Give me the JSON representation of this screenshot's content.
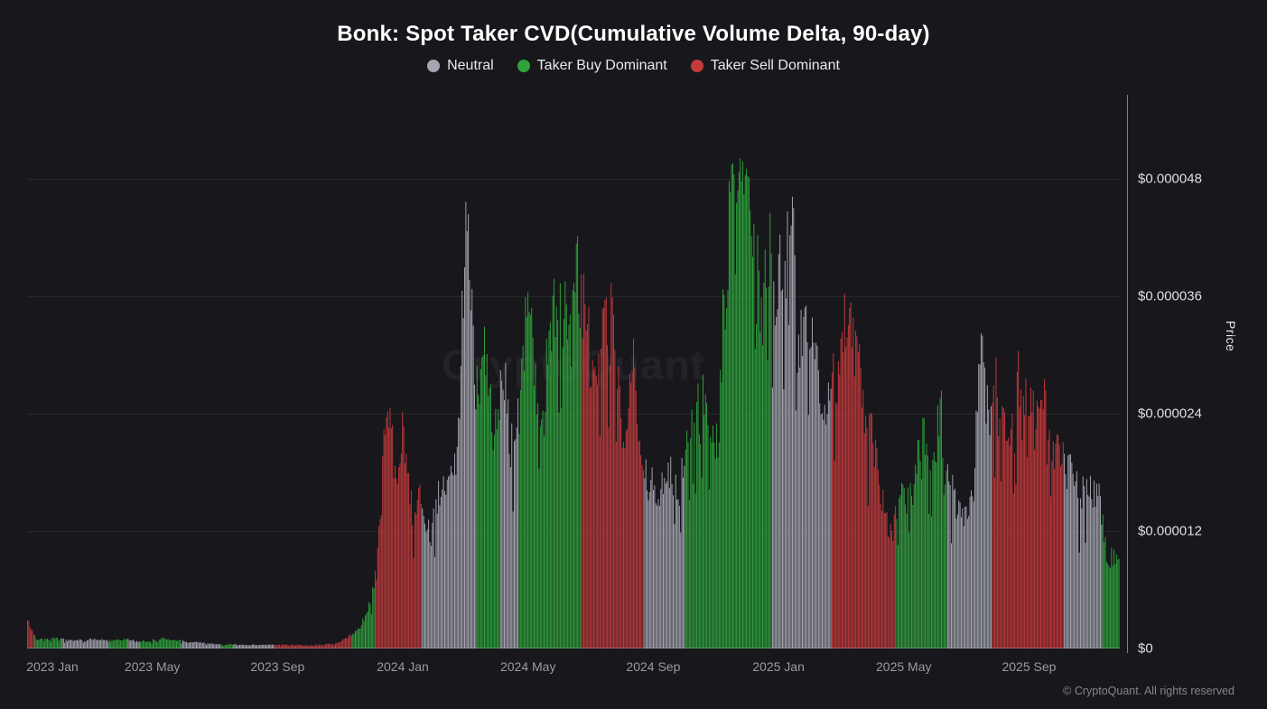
{
  "title": "Bonk: Spot Taker CVD(Cumulative Volume Delta, 90-day)",
  "watermark": "CryptoQuant",
  "footer": "© CryptoQuant. All rights reserved",
  "legend": [
    {
      "label": "Neutral",
      "color_key": "neutral"
    },
    {
      "label": "Taker Buy Dominant",
      "color_key": "buy"
    },
    {
      "label": "Taker Sell Dominant",
      "color_key": "sell"
    }
  ],
  "y_axis": {
    "label": "Price",
    "ticks": [
      {
        "value": 48,
        "label": "$0.000048"
      },
      {
        "value": 36,
        "label": "$0.000036"
      },
      {
        "value": 24,
        "label": "$0.000024"
      },
      {
        "value": 12,
        "label": "$0.000012"
      },
      {
        "value": 0,
        "label": "$0"
      }
    ]
  },
  "x_axis": {
    "ticks": [
      {
        "m": 0,
        "label": "2023 Jan"
      },
      {
        "m": 4,
        "label": "2023 May"
      },
      {
        "m": 8,
        "label": "2023 Sep"
      },
      {
        "m": 12,
        "label": "2024 Jan"
      },
      {
        "m": 16,
        "label": "2024 May"
      },
      {
        "m": 20,
        "label": "2024 Sep"
      },
      {
        "m": 24,
        "label": "2025 Jan"
      },
      {
        "m": 28,
        "label": "2025 May"
      },
      {
        "m": 32,
        "label": "2025 Sep"
      }
    ]
  },
  "chart_data": {
    "type": "bar",
    "title": "Bonk: Spot Taker CVD(Cumulative Volume Delta, 90-day)",
    "x_unit": "months since 2023 Jan (daily bars)",
    "value_unit": "USD",
    "value_scale": 1e-06,
    "x_range": [
      0,
      34.9
    ],
    "y_range": [
      0,
      56.6
    ],
    "bar_count": 880,
    "grid": "horizontal-faint",
    "legend_position": "top-center",
    "colors": {
      "neutral": "#a5a5b0",
      "buy": "#2fa23c",
      "sell": "#c43a3a",
      "background": "#17171c"
    },
    "keypoints": [
      [
        0,
        3.8
      ],
      [
        0.12,
        2.2
      ],
      [
        0.3,
        0.95
      ],
      [
        0.8,
        0.85
      ],
      [
        1.4,
        0.7
      ],
      [
        2.0,
        0.8
      ],
      [
        2.6,
        0.65
      ],
      [
        3.2,
        0.75
      ],
      [
        3.8,
        0.6
      ],
      [
        4.3,
        0.8
      ],
      [
        4.9,
        0.7
      ],
      [
        5.6,
        0.55
      ],
      [
        6.3,
        0.45
      ],
      [
        7.0,
        0.4
      ],
      [
        7.8,
        0.35
      ],
      [
        8.6,
        0.3
      ],
      [
        9.4,
        0.35
      ],
      [
        10.0,
        0.55
      ],
      [
        10.5,
        1.4
      ],
      [
        10.9,
        3.5
      ],
      [
        11.15,
        7.5
      ],
      [
        11.5,
        23
      ],
      [
        11.75,
        15
      ],
      [
        12.0,
        18.5
      ],
      [
        12.3,
        11.5
      ],
      [
        12.6,
        13
      ],
      [
        12.9,
        10.5
      ],
      [
        13.3,
        13.5
      ],
      [
        13.7,
        17
      ],
      [
        14.05,
        37.5
      ],
      [
        14.3,
        23
      ],
      [
        14.6,
        27
      ],
      [
        14.9,
        22
      ],
      [
        15.2,
        26
      ],
      [
        15.5,
        22.5
      ],
      [
        15.9,
        30
      ],
      [
        16.2,
        34
      ],
      [
        16.45,
        29
      ],
      [
        16.8,
        39
      ],
      [
        17.1,
        31
      ],
      [
        17.4,
        34
      ],
      [
        17.7,
        30
      ],
      [
        18.0,
        25
      ],
      [
        18.35,
        28
      ],
      [
        18.7,
        27.5
      ],
      [
        19.0,
        20
      ],
      [
        19.4,
        23
      ],
      [
        19.7,
        14.5
      ],
      [
        20.0,
        17
      ],
      [
        20.3,
        14
      ],
      [
        20.6,
        18
      ],
      [
        20.9,
        15.5
      ],
      [
        21.2,
        19
      ],
      [
        21.5,
        23
      ],
      [
        21.9,
        20
      ],
      [
        22.2,
        27
      ],
      [
        22.5,
        38
      ],
      [
        22.78,
        53.5
      ],
      [
        23.0,
        41
      ],
      [
        23.15,
        46
      ],
      [
        23.4,
        37
      ],
      [
        23.65,
        42
      ],
      [
        23.9,
        35
      ],
      [
        24.15,
        31
      ],
      [
        24.4,
        37.5
      ],
      [
        24.7,
        30
      ],
      [
        25.0,
        35
      ],
      [
        25.3,
        29
      ],
      [
        25.6,
        32.5
      ],
      [
        25.9,
        28
      ],
      [
        26.2,
        31
      ],
      [
        26.5,
        23.5
      ],
      [
        26.9,
        18.5
      ],
      [
        27.3,
        13.5
      ],
      [
        27.7,
        11
      ],
      [
        28.0,
        14
      ],
      [
        28.3,
        12.5
      ],
      [
        28.6,
        20.5
      ],
      [
        28.9,
        17
      ],
      [
        29.2,
        20
      ],
      [
        29.5,
        17.5
      ],
      [
        29.8,
        19.5
      ],
      [
        30.05,
        17
      ],
      [
        30.25,
        23
      ],
      [
        30.5,
        38.5
      ],
      [
        30.7,
        32
      ],
      [
        30.9,
        35
      ],
      [
        31.2,
        29.5
      ],
      [
        31.5,
        25.5
      ],
      [
        31.8,
        28
      ],
      [
        32.1,
        22.5
      ],
      [
        32.4,
        26
      ],
      [
        32.7,
        19.5
      ],
      [
        33.0,
        16.5
      ],
      [
        33.3,
        14.5
      ],
      [
        33.6,
        15.5
      ],
      [
        33.9,
        13
      ],
      [
        34.2,
        14
      ],
      [
        34.5,
        10.5
      ],
      [
        34.75,
        12.5
      ]
    ],
    "regimes": [
      [
        0,
        0.25,
        "sell"
      ],
      [
        0.25,
        1.1,
        "buy"
      ],
      [
        1.1,
        2.6,
        "neutral"
      ],
      [
        2.6,
        3.2,
        "buy"
      ],
      [
        3.2,
        3.6,
        "neutral"
      ],
      [
        3.6,
        4.9,
        "buy"
      ],
      [
        4.9,
        6.2,
        "neutral"
      ],
      [
        6.2,
        6.6,
        "buy"
      ],
      [
        6.6,
        7.9,
        "neutral"
      ],
      [
        7.9,
        10.4,
        "sell"
      ],
      [
        10.4,
        11.1,
        "buy"
      ],
      [
        11.1,
        12.6,
        "sell"
      ],
      [
        12.6,
        14.35,
        "neutral"
      ],
      [
        14.35,
        15.1,
        "buy"
      ],
      [
        15.1,
        15.7,
        "neutral"
      ],
      [
        15.7,
        17.7,
        "buy"
      ],
      [
        17.7,
        19.7,
        "sell"
      ],
      [
        19.7,
        21.0,
        "neutral"
      ],
      [
        21.0,
        23.8,
        "buy"
      ],
      [
        23.8,
        25.7,
        "neutral"
      ],
      [
        25.7,
        27.75,
        "sell"
      ],
      [
        27.75,
        29.4,
        "buy"
      ],
      [
        29.4,
        30.8,
        "neutral"
      ],
      [
        30.8,
        33.1,
        "sell"
      ],
      [
        33.1,
        34.35,
        "neutral"
      ],
      [
        34.35,
        34.9,
        "buy"
      ]
    ]
  }
}
